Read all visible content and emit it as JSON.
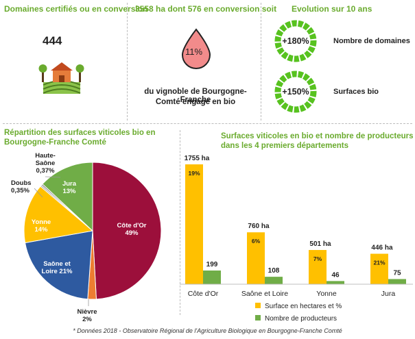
{
  "panel1": {
    "title": "Domaines certifiés ou en conversion",
    "count": "444"
  },
  "panel2": {
    "title": "3558 ha dont 576 en conversion soit",
    "percent": "11%",
    "caption_line1": "du vignoble de Bourgogne-Franche",
    "caption_line2": "Comté engagé en bio"
  },
  "panel3": {
    "title": "Evolution sur 10 ans",
    "items": [
      {
        "value": "+180%",
        "label": "Nombre de domaines"
      },
      {
        "value": "+150%",
        "label": "Surfaces bio"
      }
    ]
  },
  "colors": {
    "green": "#6aab2e",
    "ring": "#57c21f",
    "drop": "#f28b8b",
    "cote_dor": "#9c0f3b",
    "saone_loire": "#2e5aa0",
    "yonne": "#ffc000",
    "jura": "#70ad47",
    "nievre": "#ed7d31",
    "bar_surface": "#ffc000",
    "bar_producers": "#70ad47"
  },
  "chart_data": [
    {
      "type": "pie",
      "title_line1": "Répartition des surfaces viticoles bio en",
      "title_line2": "Bourgogne-Franche Comté",
      "slices": [
        {
          "name": "Côte d'Or",
          "value": 49,
          "label1": "Côte d'Or",
          "label2": "49%"
        },
        {
          "name": "Nièvre",
          "value": 2,
          "label1": "Nièvre",
          "label2": "2%"
        },
        {
          "name": "Saône et Loire",
          "value": 21,
          "label1": "Saône et",
          "label2": "Loire 21%"
        },
        {
          "name": "Yonne",
          "value": 14,
          "label1": "Yonne",
          "label2": "14%"
        },
        {
          "name": "Doubs",
          "value": 0.35,
          "label1": "Doubs",
          "label2": "0,35%"
        },
        {
          "name": "Haute-Saône",
          "value": 0.37,
          "label1": "Haute-",
          "label2": "Saône",
          "label3": "0,37%"
        },
        {
          "name": "Jura",
          "value": 13,
          "label1": "Jura",
          "label2": "13%"
        }
      ]
    },
    {
      "type": "bar",
      "title_line1": "Surfaces viticoles en bio et nombre de producteurs",
      "title_line2": "dans les 4 premiers départements",
      "categories": [
        "Côte d'Or",
        "Saône et Loire",
        "Yonne",
        "Jura"
      ],
      "series": [
        {
          "name": "Surface en hectares et %",
          "values": [
            1755,
            760,
            501,
            446
          ],
          "labels": [
            "1755 ha",
            "760 ha",
            "501 ha",
            "446 ha"
          ],
          "percent_labels": [
            "19%",
            "6%",
            "7%",
            "21%"
          ]
        },
        {
          "name": "Nombre de producteurs",
          "values": [
            199,
            108,
            46,
            75
          ],
          "labels": [
            "199",
            "108",
            "46",
            "75"
          ]
        }
      ],
      "legend_position": "bottom"
    }
  ],
  "footnote": "* Données 2018 - Observatoire Régional de l'Agriculture Biologique en Bourgogne-Franche Comté"
}
